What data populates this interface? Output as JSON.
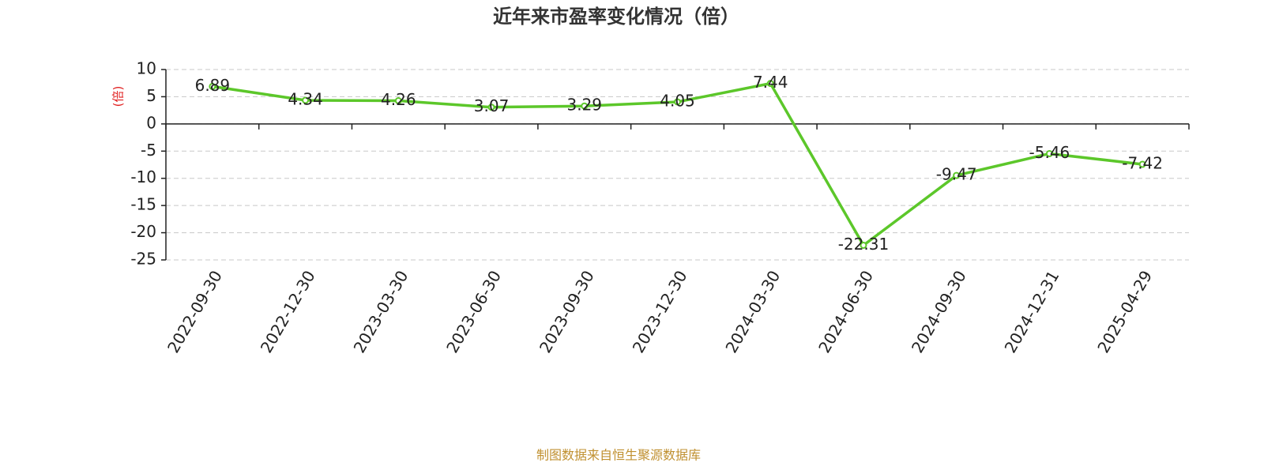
{
  "chart_data": {
    "type": "line",
    "title": "近年来市盈率变化情况（倍）",
    "y_label": "(倍)",
    "footer": "制图数据来自恒生聚源数据库",
    "categories": [
      "2022-09-30",
      "2022-12-30",
      "2023-03-30",
      "2023-06-30",
      "2023-09-30",
      "2023-12-30",
      "2024-03-30",
      "2024-06-30",
      "2024-09-30",
      "2024-12-31",
      "2025-04-29"
    ],
    "values": [
      6.89,
      4.34,
      4.26,
      3.07,
      3.29,
      4.05,
      7.44,
      -22.31,
      -9.47,
      -5.46,
      -7.42
    ],
    "color": "#5cc72a",
    "ylim": [
      -25,
      10
    ],
    "yticks": [
      -25,
      -20,
      -15,
      -10,
      -5,
      0,
      5,
      10
    ],
    "grid": true
  }
}
